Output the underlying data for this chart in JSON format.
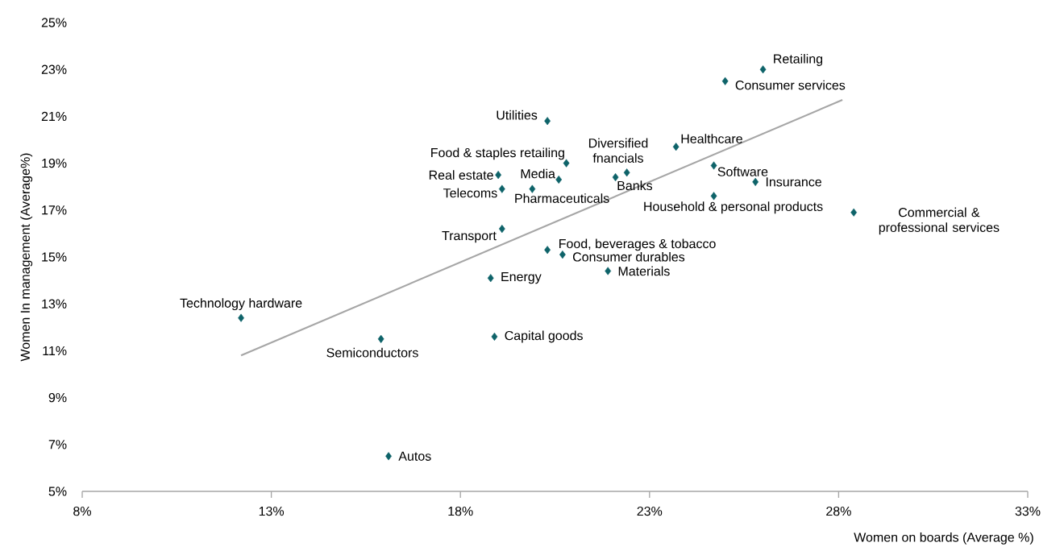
{
  "chart_data": {
    "type": "scatter",
    "xlabel": "Women on boards (Average %)",
    "ylabel": "Women In management (Average%)",
    "xlim": [
      8,
      33
    ],
    "ylim": [
      5,
      25
    ],
    "xticks": [
      {
        "value": 8,
        "label": "8%"
      },
      {
        "value": 13,
        "label": "13%"
      },
      {
        "value": 18,
        "label": "18%"
      },
      {
        "value": 23,
        "label": "23%"
      },
      {
        "value": 28,
        "label": "28%"
      },
      {
        "value": 33,
        "label": "33%"
      }
    ],
    "yticks": [
      {
        "value": 5,
        "label": "5%"
      },
      {
        "value": 7,
        "label": "7%"
      },
      {
        "value": 9,
        "label": "9%"
      },
      {
        "value": 11,
        "label": "11%"
      },
      {
        "value": 13,
        "label": "13%"
      },
      {
        "value": 15,
        "label": "15%"
      },
      {
        "value": 17,
        "label": "17%"
      },
      {
        "value": 19,
        "label": "19%"
      },
      {
        "value": 21,
        "label": "21%"
      },
      {
        "value": 23,
        "label": "23%"
      },
      {
        "value": 25,
        "label": "25%"
      }
    ],
    "series": [
      {
        "color": "#0e6369",
        "marker": "diamond",
        "x": [
          26.0,
          25.0,
          20.3,
          23.7,
          20.8,
          24.7,
          22.4,
          22.1,
          19.0,
          20.6,
          25.8,
          19.1,
          19.9,
          24.7,
          28.4,
          19.1,
          20.3,
          20.7,
          21.9,
          18.8,
          12.2,
          15.9,
          18.9,
          16.1
        ],
        "values": [
          23.0,
          22.5,
          20.8,
          19.7,
          19.0,
          18.9,
          18.6,
          18.4,
          18.5,
          18.3,
          18.2,
          17.9,
          17.9,
          17.6,
          16.9,
          16.2,
          15.3,
          15.1,
          14.4,
          14.1,
          12.4,
          11.5,
          11.6,
          6.5
        ]
      },
      {
        "type": "line",
        "color": "#a6a6a6",
        "marker": "none",
        "line_style": "solid",
        "x": [
          12.2,
          28.1
        ],
        "values": [
          10.8,
          21.7
        ]
      }
    ],
    "annotations": [
      {
        "text": "Retailing",
        "x": 26.0,
        "y": 23.0
      },
      {
        "text": "Consumer services",
        "x": 25.0,
        "y": 22.5
      },
      {
        "text": "Utilities",
        "x": 20.3,
        "y": 20.8
      },
      {
        "text": "Healthcare",
        "x": 23.7,
        "y": 19.7
      },
      {
        "text": "Food & staples retailing",
        "x": 20.8,
        "y": 19.0
      },
      {
        "text": "Software",
        "x": 24.7,
        "y": 18.9
      },
      {
        "text": "Diversified fnancials",
        "x": 22.4,
        "y": 18.6
      },
      {
        "text": "Banks",
        "x": 22.1,
        "y": 18.4
      },
      {
        "text": "Real estate",
        "x": 19.0,
        "y": 18.5
      },
      {
        "text": "Media",
        "x": 20.6,
        "y": 18.3
      },
      {
        "text": "Insurance",
        "x": 25.8,
        "y": 18.2
      },
      {
        "text": "Telecoms",
        "x": 19.1,
        "y": 17.9
      },
      {
        "text": "Pharmaceuticals",
        "x": 19.9,
        "y": 17.9
      },
      {
        "text": "Household & personal products",
        "x": 24.7,
        "y": 17.6
      },
      {
        "text": "Commercial  & professional services",
        "x": 28.4,
        "y": 16.9
      },
      {
        "text": "Transport",
        "x": 19.1,
        "y": 16.2
      },
      {
        "text": "Food, beverages & tobacco",
        "x": 20.3,
        "y": 15.3
      },
      {
        "text": "Consumer durables",
        "x": 20.7,
        "y": 15.1
      },
      {
        "text": "Materials",
        "x": 21.9,
        "y": 14.4
      },
      {
        "text": "Energy",
        "x": 18.8,
        "y": 14.1
      },
      {
        "text": "Technology hardware",
        "x": 12.2,
        "y": 12.4
      },
      {
        "text": "Semiconductors",
        "x": 15.9,
        "y": 11.5
      },
      {
        "text": "Capital goods",
        "x": 18.9,
        "y": 11.6
      },
      {
        "text": "Autos",
        "x": 16.1,
        "y": 6.5
      }
    ]
  }
}
